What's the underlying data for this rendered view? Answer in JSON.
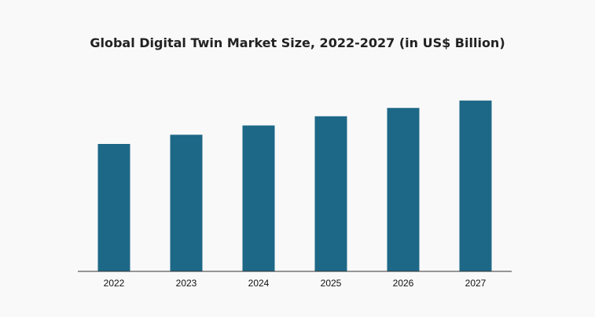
{
  "chart_data": {
    "type": "bar",
    "title": "Global Digital Twin Market Size, 2022-2027 (in US$ Billion)",
    "categories": [
      "2022",
      "2023",
      "2024",
      "2025",
      "2026",
      "2027"
    ],
    "values": [
      6.9,
      7.4,
      7.9,
      8.4,
      8.85,
      9.25
    ],
    "xlabel": "",
    "ylabel": "",
    "ylim": [
      0,
      11.5
    ],
    "grid": false,
    "legend": "none",
    "colors": {
      "bar": "#1e6887",
      "axis": "#333333"
    }
  }
}
